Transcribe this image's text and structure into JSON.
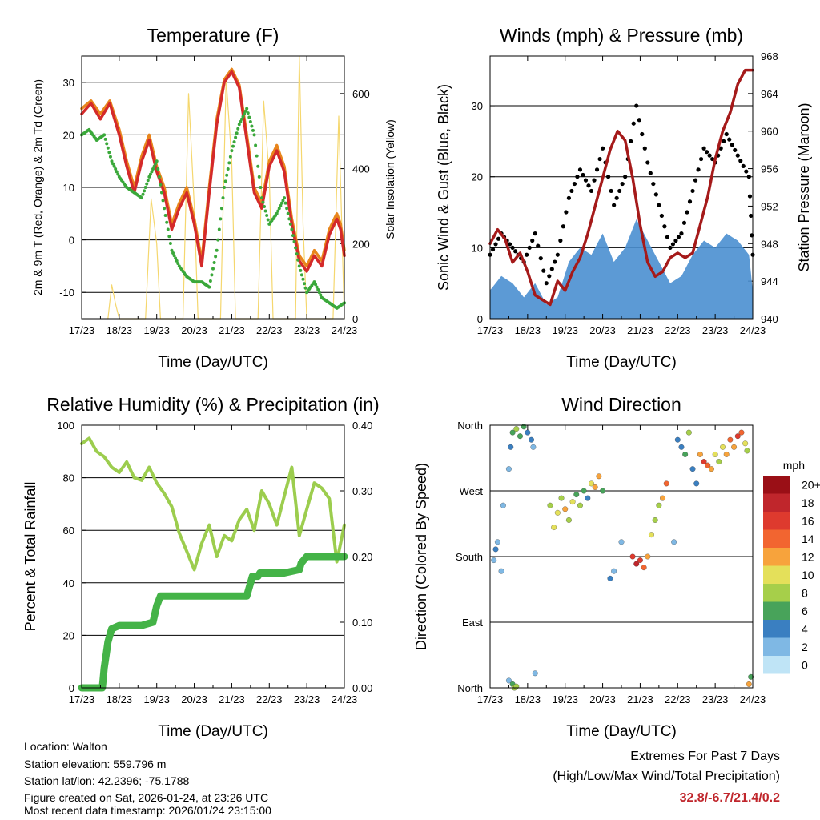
{
  "x_ticks": [
    "17/23",
    "18/23",
    "19/23",
    "20/23",
    "21/23",
    "22/23",
    "23/23",
    "24/23"
  ],
  "colors": {
    "temp2m": "#d42a2a",
    "temp9m": "#e8861c",
    "dewpoint": "#3aa83a",
    "solar": "#f5d76e",
    "wind": "#4a8fd0",
    "gust": "#000000",
    "pressure": "#a51a1a",
    "rh": "#9ccd4e",
    "precip": "#44b347"
  },
  "chart_data": [
    {
      "id": "temperature",
      "type": "line",
      "title": "Temperature (F)",
      "xlabel": "Time (Day/UTC)",
      "ylabel": "2m & 9m T (Red, Orange) & 2m Td (Green)",
      "y2label": "Solar Insolation (Yellow)",
      "xlim": [
        0,
        7
      ],
      "ylim": [
        -15,
        35
      ],
      "y2lim": [
        0,
        700
      ],
      "yticks": [
        -10,
        0,
        10,
        20,
        30
      ],
      "y2ticks": [
        0,
        200,
        400,
        600
      ],
      "series": [
        {
          "name": "2m T",
          "axis": "y",
          "color_key": "temp2m",
          "x": [
            0,
            0.25,
            0.5,
            0.75,
            1,
            1.2,
            1.4,
            1.6,
            1.8,
            2,
            2.2,
            2.4,
            2.6,
            2.8,
            3,
            3.2,
            3.4,
            3.6,
            3.8,
            4,
            4.2,
            4.4,
            4.6,
            4.8,
            5,
            5.2,
            5.4,
            5.6,
            5.8,
            6,
            6.2,
            6.4,
            6.6,
            6.8,
            6.9,
            7
          ],
          "y": [
            24,
            26,
            23,
            26,
            20,
            14,
            9,
            15,
            19,
            13,
            9,
            2,
            6,
            9,
            3,
            -5,
            9,
            22,
            30,
            32,
            29,
            19,
            9,
            6,
            14,
            17,
            13,
            3,
            -4,
            -6,
            -3,
            -5,
            1,
            4,
            2,
            -3
          ]
        },
        {
          "name": "9m T",
          "axis": "y",
          "color_key": "temp9m",
          "x": [
            0,
            0.25,
            0.5,
            0.75,
            1,
            1.2,
            1.4,
            1.6,
            1.8,
            2,
            2.2,
            2.4,
            2.6,
            2.8,
            3,
            3.2,
            3.4,
            3.6,
            3.8,
            4,
            4.2,
            4.4,
            4.6,
            4.8,
            5,
            5.2,
            5.4,
            5.6,
            5.8,
            6,
            6.2,
            6.4,
            6.6,
            6.8,
            6.9,
            7
          ],
          "y": [
            25,
            26.5,
            24,
            26.5,
            21,
            15,
            10,
            16,
            20,
            14,
            10,
            3,
            7,
            10,
            4,
            -4,
            10,
            23,
            30.5,
            32.5,
            29.5,
            20,
            10,
            7,
            15,
            18,
            14,
            4,
            -3,
            -5,
            -2,
            -4,
            2,
            5,
            3,
            -2
          ]
        },
        {
          "name": "2m Td",
          "axis": "y",
          "color_key": "dewpoint",
          "x": [
            0,
            0.2,
            0.4,
            0.6,
            0.8,
            1,
            1.2,
            1.4,
            1.6,
            1.8,
            2,
            2.2,
            2.4,
            2.6,
            2.8,
            3,
            3.2,
            3.4,
            3.6,
            3.8,
            4,
            4.2,
            4.4,
            4.6,
            4.8,
            5,
            5.2,
            5.4,
            5.6,
            5.8,
            6,
            6.2,
            6.4,
            6.6,
            6.8,
            7
          ],
          "y": [
            20,
            21,
            19,
            20,
            15,
            12,
            10,
            9,
            8,
            12,
            15,
            6,
            -2,
            -5,
            -7,
            -8,
            -8,
            -9,
            -2,
            10,
            17,
            22,
            25,
            20,
            8,
            3,
            5,
            8,
            2,
            -5,
            -10,
            -8,
            -11,
            -12,
            -13,
            -12
          ]
        },
        {
          "name": "Solar Insolation",
          "axis": "y2",
          "color_key": "solar",
          "x": [
            0.7,
            0.8,
            0.9,
            1.0,
            1.7,
            1.85,
            2.0,
            2.1,
            2.7,
            2.85,
            3.0,
            3.1,
            3.7,
            3.85,
            4.0,
            4.1,
            4.7,
            4.85,
            5.0,
            5.1,
            5.7,
            5.8,
            5.9,
            6.0,
            6.1,
            6.7,
            6.85,
            7.0
          ],
          "y": [
            0,
            90,
            40,
            0,
            0,
            320,
            200,
            0,
            0,
            600,
            300,
            0,
            0,
            640,
            420,
            0,
            0,
            580,
            380,
            0,
            0,
            700,
            250,
            0,
            0,
            0,
            540,
            0
          ]
        }
      ]
    },
    {
      "id": "winds",
      "type": "line+scatter",
      "title": "Winds (mph) & Pressure (mb)",
      "xlabel": "Time (Day/UTC)",
      "ylabel": "Sonic Wind & Gust (Blue, Black)",
      "y2label": "Station Pressure (Maroon)",
      "xlim": [
        0,
        7
      ],
      "ylim": [
        0,
        37
      ],
      "y2lim": [
        940,
        968
      ],
      "yticks": [
        0,
        10,
        20,
        30
      ],
      "y2ticks": [
        940,
        944,
        948,
        952,
        956,
        960,
        964,
        968
      ],
      "series": [
        {
          "name": "Wind Speed",
          "axis": "y",
          "color_key": "wind",
          "x": [
            0,
            0.3,
            0.6,
            0.9,
            1.2,
            1.5,
            1.8,
            2.1,
            2.4,
            2.7,
            3,
            3.3,
            3.6,
            3.9,
            4.2,
            4.5,
            4.8,
            5.1,
            5.4,
            5.7,
            6,
            6.3,
            6.6,
            6.9,
            7
          ],
          "y": [
            4,
            6,
            5,
            3,
            5,
            2,
            3,
            8,
            10,
            9,
            12,
            8,
            10,
            14,
            11,
            8,
            5,
            6,
            9,
            11,
            10,
            12,
            11,
            9,
            4
          ]
        },
        {
          "name": "Wind Gust",
          "axis": "y",
          "color_key": "gust",
          "x": [
            0,
            0.3,
            0.6,
            0.9,
            1.2,
            1.5,
            1.8,
            2.1,
            2.4,
            2.7,
            3,
            3.3,
            3.6,
            3.9,
            4.2,
            4.5,
            4.8,
            5.1,
            5.4,
            5.7,
            6,
            6.3,
            6.6,
            6.9,
            7
          ],
          "y": [
            9,
            12,
            10,
            8,
            12,
            5,
            9,
            17,
            21,
            18,
            24,
            16,
            20,
            30,
            22,
            16,
            10,
            12,
            18,
            24,
            22,
            26,
            23,
            20,
            9
          ]
        },
        {
          "name": "Station Pressure",
          "axis": "y2",
          "color_key": "pressure",
          "x": [
            0,
            0.2,
            0.4,
            0.6,
            0.8,
            1,
            1.2,
            1.4,
            1.6,
            1.8,
            2,
            2.2,
            2.4,
            2.6,
            2.8,
            3,
            3.2,
            3.4,
            3.6,
            3.8,
            4,
            4.2,
            4.4,
            4.6,
            4.8,
            5,
            5.2,
            5.4,
            5.6,
            5.8,
            6,
            6.2,
            6.4,
            6.6,
            6.8,
            7
          ],
          "y": [
            948,
            949.5,
            948.5,
            946,
            947,
            945,
            942.5,
            942,
            941.5,
            944,
            943,
            945,
            946.5,
            949,
            952,
            955,
            958,
            960,
            959,
            955,
            950,
            946,
            944.5,
            945,
            946.5,
            947,
            946.5,
            947,
            950,
            953,
            957,
            960,
            962,
            965,
            966.5,
            966.5
          ]
        }
      ]
    },
    {
      "id": "humidity",
      "type": "line",
      "title": "Relative Humidity (%) & Precipitation (in)",
      "xlabel": "Time (Day/UTC)",
      "ylabel": "Percent & Total Rainfall",
      "xlim": [
        0,
        7
      ],
      "ylim": [
        0,
        100
      ],
      "y2lim": [
        0,
        0.4
      ],
      "yticks": [
        0,
        20,
        40,
        60,
        80,
        100
      ],
      "y2ticks": [
        "0.00",
        "0.10",
        "0.20",
        "0.30",
        "0.40"
      ],
      "series": [
        {
          "name": "Relative Humidity",
          "axis": "y",
          "color_key": "rh",
          "x": [
            0,
            0.2,
            0.4,
            0.6,
            0.8,
            1,
            1.2,
            1.4,
            1.6,
            1.8,
            2,
            2.2,
            2.4,
            2.6,
            2.8,
            3,
            3.2,
            3.4,
            3.6,
            3.8,
            4,
            4.2,
            4.4,
            4.6,
            4.8,
            5,
            5.2,
            5.4,
            5.6,
            5.8,
            6,
            6.2,
            6.4,
            6.6,
            6.8,
            7
          ],
          "y": [
            93,
            95,
            90,
            88,
            84,
            82,
            86,
            80,
            79,
            84,
            78,
            74,
            69,
            59,
            52,
            45,
            55,
            62,
            50,
            58,
            56,
            64,
            68,
            60,
            75,
            70,
            62,
            73,
            84,
            58,
            68,
            78,
            76,
            72,
            48,
            62
          ]
        },
        {
          "name": "Total Precipitation",
          "axis": "y2",
          "color_key": "precip",
          "x": [
            0,
            0.55,
            0.6,
            0.65,
            0.7,
            0.75,
            0.8,
            1,
            1.6,
            1.9,
            2,
            2.1,
            2.3,
            4.4,
            4.5,
            4.55,
            4.7,
            4.75,
            5.4,
            5.8,
            5.85,
            6,
            6.3,
            6.8,
            7
          ],
          "y": [
            0,
            0,
            0.03,
            0.05,
            0.07,
            0.08,
            0.09,
            0.095,
            0.095,
            0.1,
            0.125,
            0.14,
            0.14,
            0.14,
            0.16,
            0.17,
            0.17,
            0.175,
            0.175,
            0.18,
            0.19,
            0.2,
            0.2,
            0.2,
            0.2
          ]
        }
      ]
    },
    {
      "id": "wind_direction",
      "type": "scatter",
      "title": "Wind Direction",
      "xlabel": "Time (Day/UTC)",
      "ylabel": "Direction (Colored By Speed)",
      "xlim": [
        0,
        7
      ],
      "ylim": [
        0,
        360
      ],
      "ytick_values": [
        0,
        90,
        180,
        270,
        360
      ],
      "yticks": [
        "North",
        "East",
        "South",
        "West",
        "North"
      ],
      "colorbar_title": "mph",
      "colorbar_labels": [
        "20+",
        "18",
        "16",
        "14",
        "12",
        "10",
        "8",
        "6",
        "4",
        "2",
        "0"
      ],
      "colorbar_colors": [
        "#9a0f16",
        "#c0262c",
        "#de3a2e",
        "#f26530",
        "#f7a33c",
        "#e4e05a",
        "#a6cf4a",
        "#48a35a",
        "#3a7fc1",
        "#7fb8e4",
        "#bfe4f6"
      ],
      "points": [
        [
          0.1,
          175,
          3
        ],
        [
          0.15,
          190,
          4
        ],
        [
          0.2,
          200,
          2
        ],
        [
          0.3,
          160,
          3
        ],
        [
          0.35,
          250,
          2
        ],
        [
          0.5,
          300,
          3
        ],
        [
          0.55,
          330,
          4
        ],
        [
          0.6,
          350,
          6
        ],
        [
          0.7,
          355,
          8
        ],
        [
          0.8,
          345,
          7
        ],
        [
          0.9,
          358,
          6
        ],
        [
          1,
          350,
          5
        ],
        [
          1.1,
          340,
          4
        ],
        [
          1.15,
          330,
          3
        ],
        [
          1.2,
          20,
          2
        ],
        [
          0.5,
          10,
          3
        ],
        [
          0.6,
          5,
          7
        ],
        [
          0.65,
          0,
          9
        ],
        [
          0.7,
          2,
          8
        ],
        [
          1.6,
          250,
          8
        ],
        [
          1.7,
          220,
          10
        ],
        [
          1.8,
          240,
          11
        ],
        [
          1.9,
          260,
          9
        ],
        [
          2,
          245,
          12
        ],
        [
          2.1,
          230,
          8
        ],
        [
          2.2,
          255,
          10
        ],
        [
          2.3,
          265,
          7
        ],
        [
          2.4,
          250,
          9
        ],
        [
          2.5,
          270,
          6
        ],
        [
          2.6,
          260,
          5
        ],
        [
          2.7,
          280,
          11
        ],
        [
          2.8,
          275,
          13
        ],
        [
          2.9,
          290,
          12
        ],
        [
          3,
          270,
          6
        ],
        [
          3.2,
          150,
          4
        ],
        [
          3.3,
          160,
          3
        ],
        [
          3.5,
          200,
          2
        ],
        [
          3.8,
          180,
          16
        ],
        [
          3.9,
          170,
          18
        ],
        [
          4,
          175,
          17
        ],
        [
          4.1,
          165,
          14
        ],
        [
          4.2,
          180,
          13
        ],
        [
          4.3,
          210,
          10
        ],
        [
          4.4,
          230,
          8
        ],
        [
          4.5,
          250,
          9
        ],
        [
          4.6,
          260,
          12
        ],
        [
          4.7,
          280,
          14
        ],
        [
          4.9,
          200,
          3
        ],
        [
          5,
          340,
          4
        ],
        [
          5.1,
          330,
          5
        ],
        [
          5.2,
          320,
          6
        ],
        [
          5.3,
          350,
          8
        ],
        [
          5.4,
          300,
          5
        ],
        [
          5.5,
          280,
          4
        ],
        [
          5.6,
          320,
          12
        ],
        [
          5.7,
          310,
          16
        ],
        [
          5.8,
          305,
          14
        ],
        [
          5.9,
          300,
          12
        ],
        [
          6,
          320,
          10
        ],
        [
          6.1,
          310,
          9
        ],
        [
          6.2,
          330,
          11
        ],
        [
          6.3,
          320,
          13
        ],
        [
          6.4,
          340,
          15
        ],
        [
          6.5,
          330,
          12
        ],
        [
          6.6,
          345,
          16
        ],
        [
          6.7,
          350,
          14
        ],
        [
          6.8,
          335,
          10
        ],
        [
          6.85,
          325,
          9
        ],
        [
          6.9,
          5,
          12
        ],
        [
          6.95,
          15,
          6
        ]
      ]
    }
  ],
  "info": {
    "location": "Location: Walton",
    "elevation": "Station elevation: 559.796 m",
    "latlon": "Station lat/lon: 42.2396; -75.1788",
    "created": "Figure created on Sat, 2026-01-24, at 23:26 UTC",
    "recent": "Most recent data timestamp: 2026/01/24 23:15:00"
  },
  "extremes": {
    "title": "Extremes For Past 7 Days",
    "subtitle": "(High/Low/Max Wind/Total Precipitation)",
    "values": "32.8/-6.7/21.4/0.2"
  }
}
